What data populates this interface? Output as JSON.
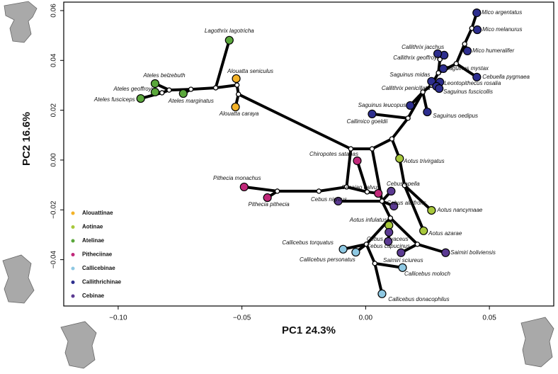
{
  "chart_data": {
    "type": "scatter",
    "xlabel": "PC1 24.3%",
    "ylabel": "PC2 16.6%",
    "xlim": [
      -0.122,
      0.076
    ],
    "ylim": [
      -0.0586,
      0.0634
    ],
    "xticks": [
      {
        "value": -0.1,
        "label": "−0.10"
      },
      {
        "value": -0.05,
        "label": "−0.05"
      },
      {
        "value": 0,
        "label": "0.00"
      },
      {
        "value": 0.05,
        "label": "0.05"
      }
    ],
    "yticks": [
      {
        "value": -0.04,
        "label": "−0.04"
      },
      {
        "value": -0.02,
        "label": "−0.02"
      },
      {
        "value": 0,
        "label": "0.00"
      },
      {
        "value": 0.02,
        "label": "0.02"
      },
      {
        "value": 0.04,
        "label": "0.04"
      },
      {
        "value": 0.06,
        "label": "0.06"
      }
    ],
    "series": [
      {
        "name": "Alouattinae",
        "color": "#f3b227",
        "labels": [
          "Alouatta seniculus",
          "Alouatta caraya"
        ],
        "x": [
          -0.0523,
          -0.0526
        ],
        "y": [
          0.0327,
          0.0213
        ]
      },
      {
        "name": "Aotinae",
        "color": "#a8c83c",
        "labels": [
          "Aotus trivirgatus",
          "Aotus nancymaae",
          "Aotus azarae",
          "Aotus infulatus"
        ],
        "x": [
          0.0137,
          0.0266,
          0.0234,
          0.0094
        ],
        "y": [
          0.0006,
          -0.0202,
          -0.0284,
          -0.0262
        ]
      },
      {
        "name": "Atelinae",
        "color": "#5aa73b",
        "labels": [
          "Lagothrix lagotricha",
          "Ateles belzebuth",
          "Ateles geoffroyi",
          "Ateles fusciceps",
          "Ateles marginatus"
        ],
        "x": [
          -0.0551,
          -0.0851,
          -0.0851,
          -0.0909,
          -0.0737
        ],
        "y": [
          0.0481,
          0.0307,
          0.0273,
          0.0247,
          0.0267
        ]
      },
      {
        "name": "Pitheciinae",
        "color": "#c1287a",
        "labels": [
          "Pithecia monachus",
          "Pithecia pithecia",
          "Chiropotes satanas",
          "Cacajao calvus"
        ],
        "x": [
          -0.0491,
          -0.0397,
          -0.0034,
          0.0051
        ],
        "y": [
          -0.0108,
          -0.0151,
          -0.0003,
          -0.0134
        ]
      },
      {
        "name": "Callicebinae",
        "color": "#8ec8e2",
        "labels": [
          "Callicebus torquatus",
          "Callicebus personatus",
          "Callicebus moloch",
          "Callicebus donacophilus"
        ],
        "x": [
          -0.0091,
          -0.004,
          0.0149,
          0.0066
        ],
        "y": [
          -0.0358,
          -0.037,
          -0.0432,
          -0.0537
        ]
      },
      {
        "name": "Callithrichinae",
        "color": "#2d2e8e",
        "labels": [
          "Mico argentatus",
          "Mico melanurus",
          "Mico humeralifer",
          "Callithrix jacchus",
          "Callithrix geoffroyi",
          "Cebuella pygmaea",
          "Saguinus mystax",
          "Saguinus midas",
          "Leontopithecus rosalia",
          "Callithrix penicillata",
          "Saguinus fuscicollis",
          "Saguinus leucopus",
          "Saguinus oedipus",
          "Callimico goeldii"
        ],
        "x": [
          0.0449,
          0.0451,
          0.0411,
          0.0317,
          0.0291,
          0.0449,
          0.0314,
          0.0266,
          0.03,
          0.0286,
          0.0297,
          0.018,
          0.0249,
          0.0026
        ],
        "y": [
          0.0591,
          0.0523,
          0.0438,
          0.0421,
          0.0427,
          0.0333,
          0.0367,
          0.0316,
          0.0313,
          0.0296,
          0.0287,
          0.0219,
          0.0193,
          0.0185
        ]
      },
      {
        "name": "Cebinae",
        "color": "#5b3a92",
        "labels": [
          "Cebus apella",
          "Cebus albifrons",
          "Cebus nigritus",
          "Cebus olivaceus",
          "Cebus capucinus",
          "Saimiri sciureus",
          "Saimiri boliviensis"
        ],
        "x": [
          0.0103,
          0.0114,
          -0.0111,
          0.0094,
          0.0091,
          0.0143,
          0.0323
        ],
        "y": [
          -0.0125,
          -0.0185,
          -0.0165,
          -0.029,
          -0.0327,
          -0.0372,
          -0.0372
        ]
      }
    ],
    "branches": [
      {
        "x": [
          -0.0551,
          -0.0606
        ],
        "y": [
          0.0481,
          0.029
        ]
      },
      {
        "x": [
          -0.0606,
          -0.0706
        ],
        "y": [
          0.029,
          0.0284
        ]
      },
      {
        "x": [
          -0.0706,
          -0.0737
        ],
        "y": [
          0.0284,
          0.0267
        ]
      },
      {
        "x": [
          -0.0706,
          -0.0794
        ],
        "y": [
          0.0284,
          0.0281
        ]
      },
      {
        "x": [
          -0.0794,
          -0.0851
        ],
        "y": [
          0.0281,
          0.0307
        ]
      },
      {
        "x": [
          -0.0794,
          -0.0823
        ],
        "y": [
          0.0281,
          0.027
        ]
      },
      {
        "x": [
          -0.0823,
          -0.0851
        ],
        "y": [
          0.027,
          0.0273
        ]
      },
      {
        "x": [
          -0.0823,
          -0.0909
        ],
        "y": [
          0.027,
          0.0247
        ]
      },
      {
        "x": [
          -0.0606,
          -0.052
        ],
        "y": [
          0.029,
          0.0301
        ]
      },
      {
        "x": [
          -0.052,
          -0.0523
        ],
        "y": [
          0.0301,
          0.0327
        ]
      },
      {
        "x": [
          -0.052,
          -0.0514
        ],
        "y": [
          0.0301,
          0.0264
        ]
      },
      {
        "x": [
          -0.0514,
          -0.0526
        ],
        "y": [
          0.0264,
          0.0213
        ]
      },
      {
        "x": [
          -0.0514,
          -0.006
        ],
        "y": [
          0.0264,
          0.0045
        ]
      },
      {
        "x": [
          -0.006,
          0.0026
        ],
        "y": [
          0.0045,
          0.0045
        ]
      },
      {
        "x": [
          -0.006,
          -0.0077
        ],
        "y": [
          0.0045,
          -0.0108
        ]
      },
      {
        "x": [
          -0.0077,
          -0.0189
        ],
        "y": [
          -0.0108,
          -0.0125
        ]
      },
      {
        "x": [
          -0.0189,
          -0.0357
        ],
        "y": [
          -0.0125,
          -0.0125
        ]
      },
      {
        "x": [
          -0.0357,
          -0.0491
        ],
        "y": [
          -0.0125,
          -0.0108
        ]
      },
      {
        "x": [
          -0.0357,
          -0.0397
        ],
        "y": [
          -0.0125,
          -0.0151
        ]
      },
      {
        "x": [
          -0.0077,
          0.0006
        ],
        "y": [
          -0.0108,
          -0.0128
        ]
      },
      {
        "x": [
          0.0006,
          -0.0034
        ],
        "y": [
          -0.0128,
          -0.0003
        ]
      },
      {
        "x": [
          0.0006,
          0.0051
        ],
        "y": [
          -0.0128,
          -0.0134
        ]
      },
      {
        "x": [
          0.0026,
          0.0106
        ],
        "y": [
          0.0045,
          0.0085
        ]
      },
      {
        "x": [
          0.0106,
          0.0171
        ],
        "y": [
          0.0085,
          0.0168
        ]
      },
      {
        "x": [
          0.0106,
          0.0137
        ],
        "y": [
          0.0085,
          0.0006
        ]
      },
      {
        "x": [
          0.0137,
          0.0157
        ],
        "y": [
          0.0006,
          -0.0102
        ]
      },
      {
        "x": [
          0.0157,
          0.0266
        ],
        "y": [
          -0.0102,
          -0.0202
        ]
      },
      {
        "x": [
          0.0157,
          0.0234
        ],
        "y": [
          -0.0102,
          -0.0284
        ]
      },
      {
        "x": [
          0.0026,
          0.0066
        ],
        "y": [
          0.0045,
          -0.0165
        ]
      },
      {
        "x": [
          0.0066,
          -0.0111
        ],
        "y": [
          -0.0165,
          -0.0165
        ]
      },
      {
        "x": [
          0.0066,
          0.0103
        ],
        "y": [
          -0.0165,
          -0.0125
        ]
      },
      {
        "x": [
          0.0066,
          0.0114
        ],
        "y": [
          -0.0165,
          -0.0185
        ]
      },
      {
        "x": [
          0.0066,
          0.01
        ],
        "y": [
          -0.0165,
          -0.0233
        ]
      },
      {
        "x": [
          0.01,
          0.0094
        ],
        "y": [
          -0.0233,
          -0.0262
        ]
      },
      {
        "x": [
          0.01,
          0.0094
        ],
        "y": [
          -0.0233,
          -0.029
        ]
      },
      {
        "x": [
          0.01,
          0.0091
        ],
        "y": [
          -0.0233,
          -0.0327
        ]
      },
      {
        "x": [
          0.01,
          0.0209
        ],
        "y": [
          -0.0233,
          -0.0338
        ]
      },
      {
        "x": [
          0.0209,
          0.0143
        ],
        "y": [
          -0.0338,
          -0.0372
        ]
      },
      {
        "x": [
          0.0209,
          0.0323
        ],
        "y": [
          -0.0338,
          -0.0372
        ]
      },
      {
        "x": [
          0.01,
          0.0003
        ],
        "y": [
          -0.0233,
          -0.0338
        ]
      },
      {
        "x": [
          0.0003,
          -0.0091
        ],
        "y": [
          -0.0338,
          -0.0358
        ]
      },
      {
        "x": [
          0.0003,
          -0.004
        ],
        "y": [
          -0.0338,
          -0.037
        ]
      },
      {
        "x": [
          0.0003,
          0.0037
        ],
        "y": [
          -0.0338,
          -0.0415
        ]
      },
      {
        "x": [
          0.0037,
          0.0149
        ],
        "y": [
          -0.0415,
          -0.0432
        ]
      },
      {
        "x": [
          0.0037,
          0.0066
        ],
        "y": [
          -0.0415,
          -0.0537
        ]
      },
      {
        "x": [
          0.0171,
          0.0026
        ],
        "y": [
          0.0168,
          0.0185
        ]
      },
      {
        "x": [
          0.0171,
          0.0231
        ],
        "y": [
          0.0168,
          0.0273
        ]
      },
      {
        "x": [
          0.0231,
          0.018
        ],
        "y": [
          0.0273,
          0.0219
        ]
      },
      {
        "x": [
          0.0231,
          0.0249
        ],
        "y": [
          0.0273,
          0.0193
        ]
      },
      {
        "x": [
          0.0231,
          0.0266
        ],
        "y": [
          0.0273,
          0.0301
        ]
      },
      {
        "x": [
          0.0266,
          0.0286
        ],
        "y": [
          0.0301,
          0.0296
        ]
      },
      {
        "x": [
          0.0266,
          0.0266
        ],
        "y": [
          0.0301,
          0.0316
        ]
      },
      {
        "x": [
          0.0266,
          0.03
        ],
        "y": [
          0.0301,
          0.0313
        ]
      },
      {
        "x": [
          0.0266,
          0.0297
        ],
        "y": [
          0.0301,
          0.0287
        ]
      },
      {
        "x": [
          0.0266,
          0.0294
        ],
        "y": [
          0.0301,
          0.035
        ]
      },
      {
        "x": [
          0.0294,
          0.0314
        ],
        "y": [
          0.035,
          0.0367
        ]
      },
      {
        "x": [
          0.0294,
          0.0366
        ],
        "y": [
          0.035,
          0.0387
        ]
      },
      {
        "x": [
          0.0366,
          0.0449
        ],
        "y": [
          0.0387,
          0.0333
        ]
      },
      {
        "x": [
          0.0366,
          0.04
        ],
        "y": [
          0.0387,
          0.0466
        ]
      },
      {
        "x": [
          0.04,
          0.0411
        ],
        "y": [
          0.0466,
          0.0438
        ]
      },
      {
        "x": [
          0.04,
          0.0429
        ],
        "y": [
          0.0466,
          0.0529
        ]
      },
      {
        "x": [
          0.0429,
          0.0449
        ],
        "y": [
          0.0529,
          0.0591
        ]
      },
      {
        "x": [
          0.0429,
          0.0451
        ],
        "y": [
          0.0529,
          0.0523
        ]
      },
      {
        "x": [
          0.0294,
          0.03
        ],
        "y": [
          0.035,
          0.0404
        ]
      },
      {
        "x": [
          0.03,
          0.0317
        ],
        "y": [
          0.0404,
          0.0421
        ]
      },
      {
        "x": [
          0.03,
          0.0291
        ],
        "y": [
          0.0404,
          0.0427
        ]
      }
    ]
  }
}
